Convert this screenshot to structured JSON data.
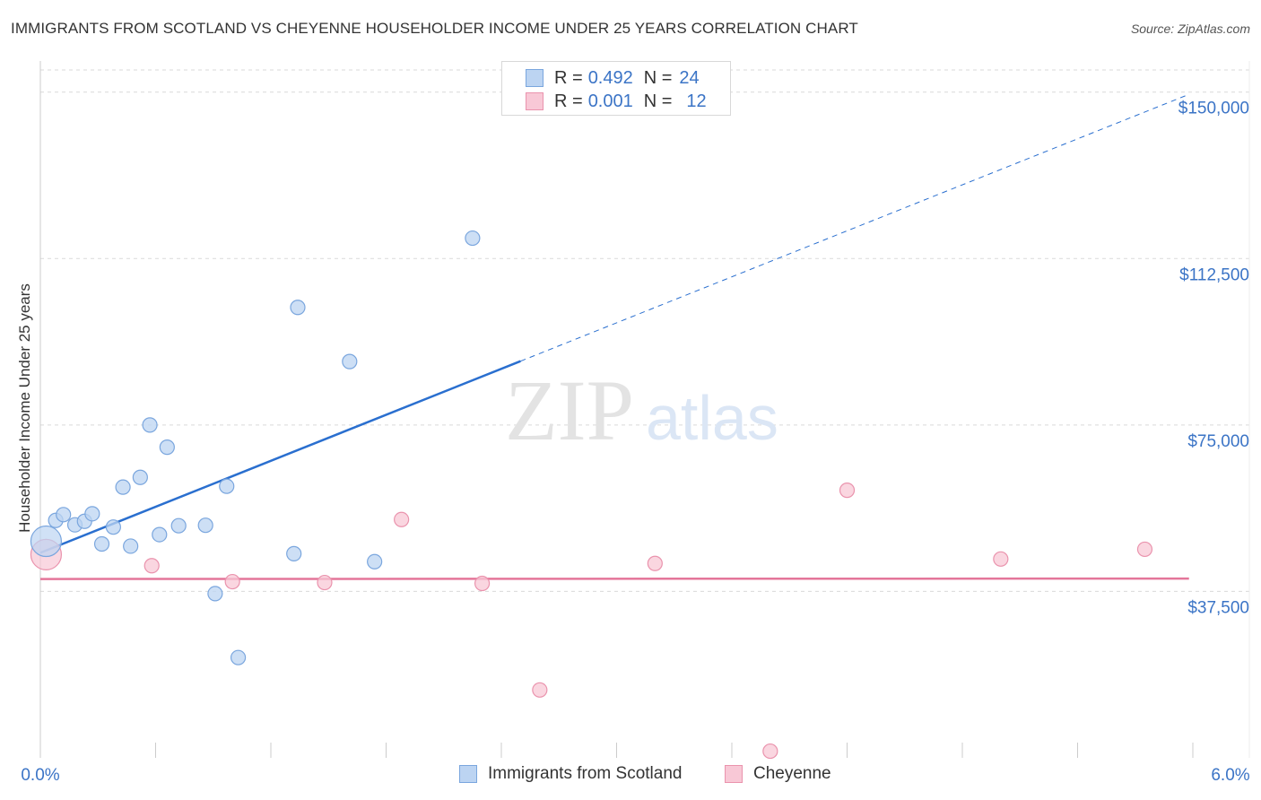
{
  "title": "IMMIGRANTS FROM SCOTLAND VS CHEYENNE HOUSEHOLDER INCOME UNDER 25 YEARS CORRELATION CHART",
  "source": "Source: ZipAtlas.com",
  "watermark": {
    "zip": "ZIP",
    "atlas": "atlas"
  },
  "legend_top": {
    "rows": [
      {
        "r_label": "R =",
        "r_value": "0.492",
        "n_label": "N =",
        "n_value": "24",
        "series": "scotland"
      },
      {
        "r_label": "R =",
        "r_value": "0.001",
        "n_label": "N =",
        "n_value": "12",
        "series": "cheyenne"
      }
    ]
  },
  "legend_bottom": [
    {
      "label": "Immigrants from Scotland",
      "series": "scotland"
    },
    {
      "label": "Cheyenne",
      "series": "cheyenne"
    }
  ],
  "colors": {
    "scotland_fill": "#bcd4f2",
    "scotland_stroke": "#7aa6de",
    "scotland_line": "#2a6fcf",
    "cheyenne_fill": "#f8c8d6",
    "cheyenne_stroke": "#ea93ad",
    "cheyenne_line": "#e4769a",
    "axis_label": "#3b74c6",
    "grid": "#d9d9d9"
  },
  "chart_data": {
    "type": "scatter",
    "title": "IMMIGRANTS FROM SCOTLAND VS CHEYENNE HOUSEHOLDER INCOME UNDER 25 YEARS CORRELATION CHART",
    "xlabel": "",
    "ylabel": "Householder Income Under 25 years",
    "xlim": [
      0,
      6.0
    ],
    "ylim": [
      0,
      155000
    ],
    "x_tick_labels": [
      "0.0%",
      "6.0%"
    ],
    "y_ticks": [
      {
        "value": 37500,
        "label": "$37,500"
      },
      {
        "value": 75000,
        "label": "$75,000"
      },
      {
        "value": 112500,
        "label": "$112,500"
      },
      {
        "value": 150000,
        "label": "$150,000"
      }
    ],
    "series": [
      {
        "name": "Immigrants from Scotland",
        "key": "scotland",
        "points": [
          {
            "x": 0.03,
            "y": 48800,
            "big": true
          },
          {
            "x": 0.08,
            "y": 53500
          },
          {
            "x": 0.12,
            "y": 54800
          },
          {
            "x": 0.18,
            "y": 52500
          },
          {
            "x": 0.23,
            "y": 53300
          },
          {
            "x": 0.27,
            "y": 55000
          },
          {
            "x": 0.32,
            "y": 48200
          },
          {
            "x": 0.38,
            "y": 52000
          },
          {
            "x": 0.43,
            "y": 61000
          },
          {
            "x": 0.47,
            "y": 47700
          },
          {
            "x": 0.52,
            "y": 63200
          },
          {
            "x": 0.57,
            "y": 75000
          },
          {
            "x": 0.62,
            "y": 50300
          },
          {
            "x": 0.66,
            "y": 70000
          },
          {
            "x": 0.72,
            "y": 52300
          },
          {
            "x": 0.86,
            "y": 52400
          },
          {
            "x": 0.91,
            "y": 37000
          },
          {
            "x": 0.97,
            "y": 61200
          },
          {
            "x": 1.03,
            "y": 22600
          },
          {
            "x": 1.32,
            "y": 46000
          },
          {
            "x": 1.34,
            "y": 101500
          },
          {
            "x": 1.61,
            "y": 89300
          },
          {
            "x": 1.74,
            "y": 44200
          },
          {
            "x": 2.25,
            "y": 117100
          }
        ],
        "trend": {
          "x0": 0.0,
          "y0": 46200,
          "x_solid_end": 2.5,
          "x1": 5.98,
          "y1": 149500
        }
      },
      {
        "name": "Cheyenne",
        "key": "cheyenne",
        "points": [
          {
            "x": 0.03,
            "y": 45800,
            "big": true
          },
          {
            "x": 0.58,
            "y": 43300
          },
          {
            "x": 1.0,
            "y": 39700
          },
          {
            "x": 1.48,
            "y": 39500
          },
          {
            "x": 1.88,
            "y": 53700
          },
          {
            "x": 2.3,
            "y": 39300
          },
          {
            "x": 2.6,
            "y": 15300
          },
          {
            "x": 3.2,
            "y": 43800
          },
          {
            "x": 3.8,
            "y": 1500
          },
          {
            "x": 4.2,
            "y": 60300
          },
          {
            "x": 5.0,
            "y": 44800
          },
          {
            "x": 5.75,
            "y": 47000
          }
        ],
        "trend": {
          "x0": 0.0,
          "y0": 40300,
          "x1": 5.98,
          "y1": 40400
        }
      }
    ]
  }
}
